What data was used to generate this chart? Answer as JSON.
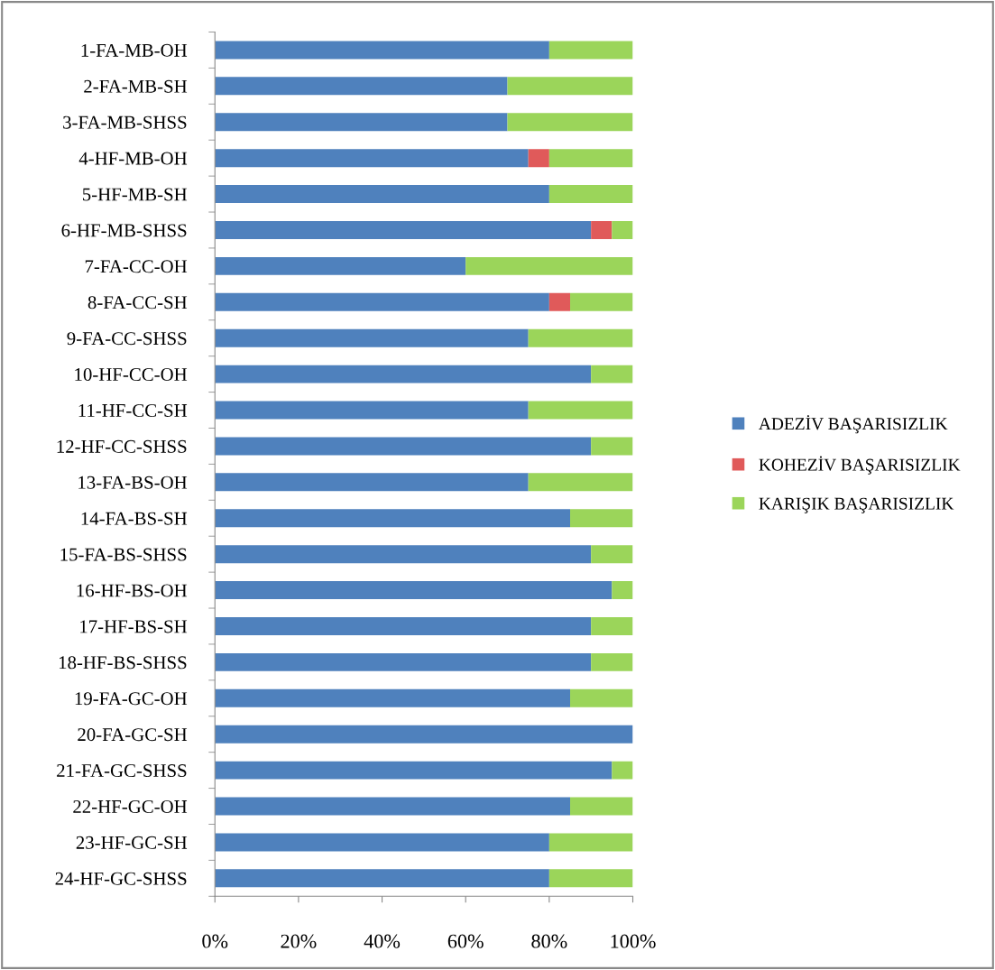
{
  "chart_data": {
    "type": "bar",
    "orientation": "horizontal",
    "stacked": true,
    "categories": [
      "1-FA-MB-OH",
      "2-FA-MB-SH",
      "3-FA-MB-SHSS",
      "4-HF-MB-OH",
      "5-HF-MB-SH",
      "6-HF-MB-SHSS",
      "7-FA-CC-OH",
      "8-FA-CC-SH",
      "9-FA-CC-SHSS",
      "10-HF-CC-OH",
      "11-HF-CC-SH",
      "12-HF-CC-SHSS",
      "13-FA-BS-OH",
      "14-FA-BS-SH",
      "15-FA-BS-SHSS",
      "16-HF-BS-OH",
      "17-HF-BS-SH",
      "18-HF-BS-SHSS",
      "19-FA-GC-OH",
      "20-FA-GC-SH",
      "21-FA-GC-SHSS",
      "22-HF-GC-OH",
      "23-HF-GC-SH",
      "24-HF-GC-SHSS"
    ],
    "series": [
      {
        "name": "ADEZİV BAŞARISIZLIK",
        "color": "#4f81bd",
        "values": [
          80,
          70,
          70,
          75,
          80,
          90,
          60,
          80,
          75,
          90,
          75,
          90,
          75,
          85,
          90,
          95,
          90,
          90,
          85,
          100,
          95,
          85,
          80,
          80
        ]
      },
      {
        "name": "KOHEZİV BAŞARISIZLIK",
        "color": "#e05a5a",
        "values": [
          0,
          0,
          0,
          5,
          0,
          5,
          0,
          5,
          0,
          0,
          0,
          0,
          0,
          0,
          0,
          0,
          0,
          0,
          0,
          0,
          0,
          0,
          0,
          0
        ]
      },
      {
        "name": "KARIŞIK BAŞARISIZLIK",
        "color": "#9bd55a",
        "values": [
          20,
          30,
          30,
          20,
          20,
          5,
          40,
          15,
          25,
          10,
          25,
          10,
          25,
          15,
          10,
          5,
          10,
          10,
          15,
          0,
          5,
          15,
          20,
          20
        ]
      }
    ],
    "xlim": [
      0,
      100
    ],
    "xticks": [
      {
        "value": 0,
        "label": "0%"
      },
      {
        "value": 20,
        "label": "20%"
      },
      {
        "value": 40,
        "label": "40%"
      },
      {
        "value": 60,
        "label": "60%"
      },
      {
        "value": 80,
        "label": "80%"
      },
      {
        "value": 100,
        "label": "100%"
      }
    ],
    "grid": false,
    "legend": "right"
  }
}
